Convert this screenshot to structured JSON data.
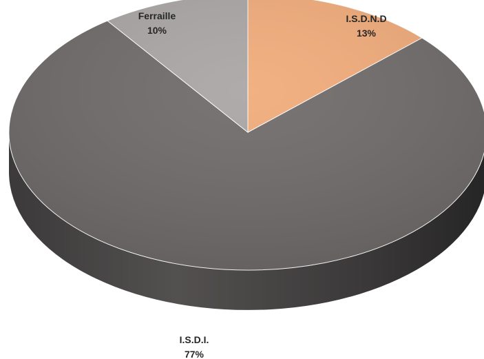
{
  "chart_data": {
    "type": "pie",
    "style": "3d",
    "categories": [
      "I.S.D.N.D",
      "I.S.D.I.",
      "Ferraille"
    ],
    "values": [
      13,
      77,
      10
    ],
    "labels": [
      "13%",
      "77%",
      "10%"
    ],
    "colors": [
      "#f1ac7b",
      "#706c6b",
      "#aaa6a6"
    ],
    "side_colors": [
      "#c98a5e",
      "#3a3838",
      "#8a8686"
    ],
    "legend": "none"
  }
}
